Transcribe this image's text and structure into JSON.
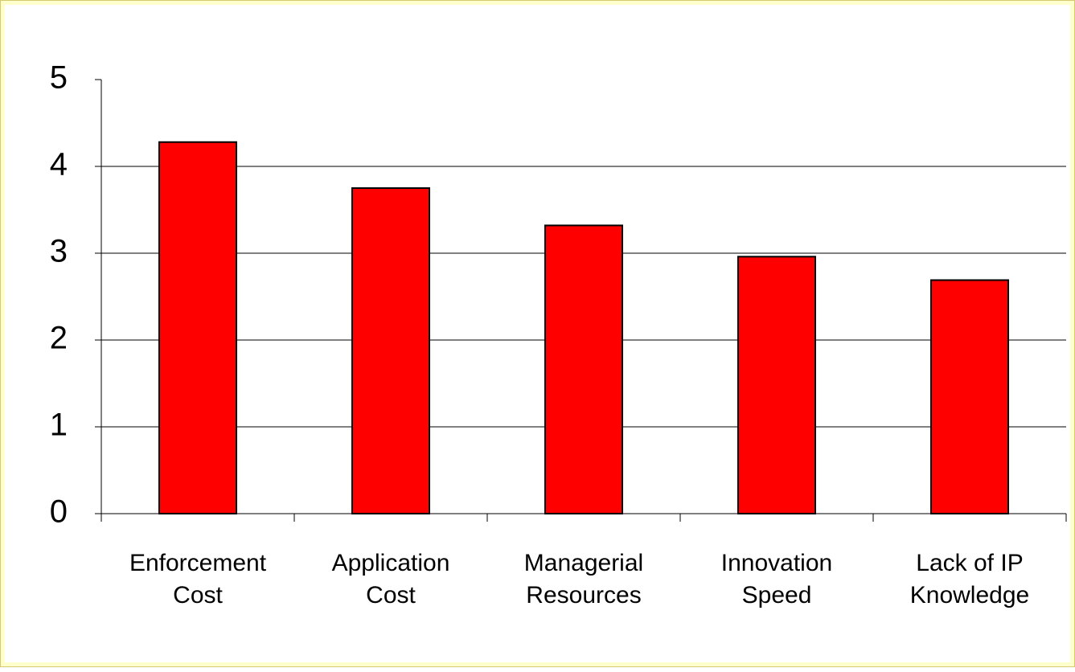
{
  "chart_data": {
    "type": "bar",
    "categories": [
      "Enforcement\nCost",
      "Application\nCost",
      "Managerial\nResources",
      "Innovation\nSpeed",
      "Lack of IP\nKnowledge"
    ],
    "values": [
      4.28,
      3.75,
      3.32,
      2.96,
      2.69
    ],
    "color": "#ff0000",
    "ylim": [
      0,
      5
    ],
    "yticks": [
      0,
      1,
      2,
      3,
      4,
      5
    ],
    "grid": true
  }
}
